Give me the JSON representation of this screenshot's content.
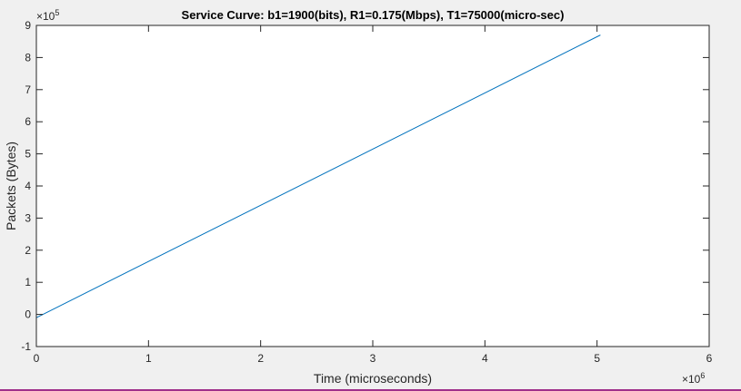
{
  "chart_data": {
    "type": "line",
    "title": "Service Curve: b1=1900(bits), R1=0.175(Mbps), T1=75000(micro-sec)",
    "xlabel": "Time (microseconds)",
    "ylabel": "Packets (Bytes)",
    "x_exponent_base": "×10",
    "x_exponent_power": "6",
    "y_exponent_base": "×10",
    "y_exponent_power": "5",
    "xlim": [
      0,
      6
    ],
    "ylim": [
      -1,
      9
    ],
    "xticks": [
      0,
      1,
      2,
      3,
      4,
      5,
      6
    ],
    "yticks": [
      -1,
      0,
      1,
      2,
      3,
      4,
      5,
      6,
      7,
      8,
      9
    ],
    "xtick_labels": [
      "0",
      "1",
      "2",
      "3",
      "4",
      "5",
      "6"
    ],
    "ytick_labels": [
      "-1",
      "0",
      "1",
      "2",
      "3",
      "4",
      "5",
      "6",
      "7",
      "8",
      "9"
    ],
    "grid": false,
    "series": [
      {
        "color": "#0072bd",
        "x": [
          0,
          5.03
        ],
        "y": [
          -0.1,
          8.7
        ]
      }
    ]
  }
}
